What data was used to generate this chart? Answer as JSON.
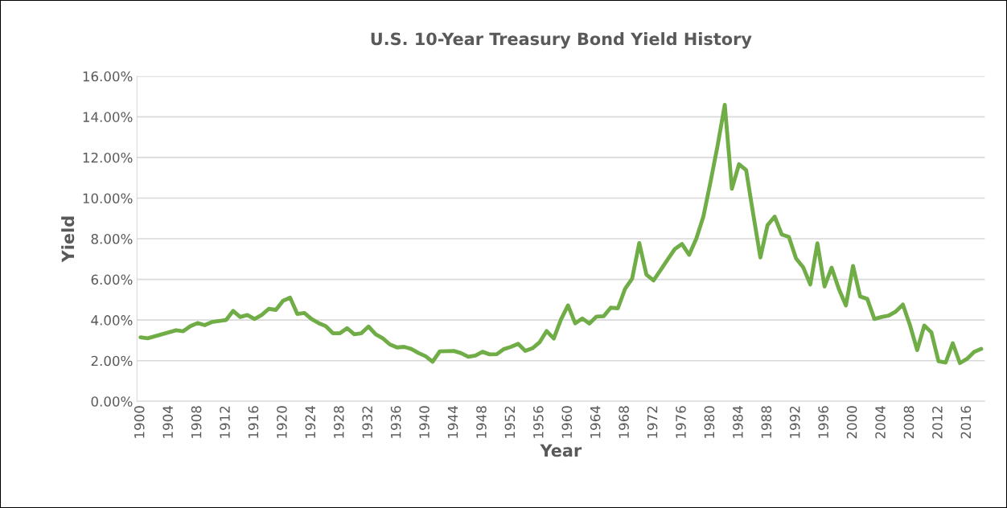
{
  "chart_data": {
    "type": "line",
    "title": "U.S. 10-Year Treasury Bond Yield History",
    "xlabel": "Year",
    "ylabel": "Yield",
    "x": [
      1900,
      1901,
      1902,
      1903,
      1904,
      1905,
      1906,
      1907,
      1908,
      1909,
      1910,
      1911,
      1912,
      1913,
      1914,
      1915,
      1916,
      1917,
      1918,
      1919,
      1920,
      1921,
      1922,
      1923,
      1924,
      1925,
      1926,
      1927,
      1928,
      1929,
      1930,
      1931,
      1932,
      1933,
      1934,
      1935,
      1936,
      1937,
      1938,
      1939,
      1940,
      1941,
      1942,
      1943,
      1944,
      1945,
      1946,
      1947,
      1948,
      1949,
      1950,
      1951,
      1952,
      1953,
      1954,
      1955,
      1956,
      1957,
      1958,
      1959,
      1960,
      1961,
      1962,
      1963,
      1964,
      1965,
      1966,
      1967,
      1968,
      1969,
      1970,
      1971,
      1972,
      1973,
      1974,
      1975,
      1976,
      1977,
      1978,
      1979,
      1980,
      1981,
      1982,
      1983,
      1984,
      1985,
      1986,
      1987,
      1988,
      1989,
      1990,
      1991,
      1992,
      1993,
      1994,
      1995,
      1996,
      1997,
      1998,
      1999,
      2000,
      2001,
      2002,
      2003,
      2004,
      2005,
      2006,
      2007,
      2008,
      2009,
      2010,
      2011,
      2012,
      2013,
      2014,
      2015,
      2016,
      2017,
      2018
    ],
    "series": [
      {
        "color": "#70ad47",
        "values": [
          3.15,
          3.1,
          3.2,
          3.3,
          3.4,
          3.5,
          3.45,
          3.7,
          3.85,
          3.75,
          3.9,
          3.95,
          4.0,
          4.45,
          4.15,
          4.25,
          4.05,
          4.25,
          4.55,
          4.5,
          4.95,
          5.1,
          4.3,
          4.35,
          4.05,
          3.85,
          3.7,
          3.35,
          3.35,
          3.6,
          3.3,
          3.35,
          3.68,
          3.3,
          3.1,
          2.8,
          2.65,
          2.68,
          2.58,
          2.38,
          2.22,
          1.95,
          2.46,
          2.47,
          2.48,
          2.37,
          2.19,
          2.25,
          2.44,
          2.31,
          2.32,
          2.57,
          2.68,
          2.83,
          2.48,
          2.61,
          2.9,
          3.46,
          3.09,
          4.02,
          4.72,
          3.84,
          4.08,
          3.83,
          4.17,
          4.19,
          4.61,
          4.58,
          5.53,
          6.04,
          7.79,
          6.24,
          5.95,
          6.46,
          6.99,
          7.5,
          7.74,
          7.21,
          8.0,
          9.1,
          10.8,
          12.6,
          14.59,
          10.46,
          11.67,
          11.38,
          9.19,
          7.08,
          8.67,
          9.09,
          8.21,
          8.09,
          7.03,
          6.6,
          5.75,
          7.78,
          5.65,
          6.58,
          5.54,
          4.72,
          6.66,
          5.16,
          5.04,
          4.05,
          4.15,
          4.22,
          4.42,
          4.76,
          3.74,
          2.52,
          3.73,
          3.39,
          1.97,
          1.91,
          2.86,
          1.88,
          2.09,
          2.43,
          2.58
        ]
      }
    ],
    "xlim": [
      1899.5,
      2018.5
    ],
    "xticks": [
      1900,
      1904,
      1908,
      1912,
      1916,
      1920,
      1924,
      1928,
      1932,
      1936,
      1940,
      1944,
      1948,
      1952,
      1956,
      1960,
      1964,
      1968,
      1972,
      1976,
      1980,
      1984,
      1988,
      1992,
      1996,
      2000,
      2004,
      2008,
      2012,
      2016
    ],
    "ylim": [
      0,
      16
    ],
    "yticks": [
      {
        "value": 0,
        "label": "0.00%"
      },
      {
        "value": 2,
        "label": "2.00%"
      },
      {
        "value": 4,
        "label": "4.00%"
      },
      {
        "value": 6,
        "label": "6.00%"
      },
      {
        "value": 8,
        "label": "8.00%"
      },
      {
        "value": 10,
        "label": "10.00%"
      },
      {
        "value": 12,
        "label": "12.00%"
      },
      {
        "value": 14,
        "label": "14.00%"
      },
      {
        "value": 16,
        "label": "16.00%"
      }
    ],
    "grid": "y",
    "line_style": "solid",
    "marker": "none"
  }
}
